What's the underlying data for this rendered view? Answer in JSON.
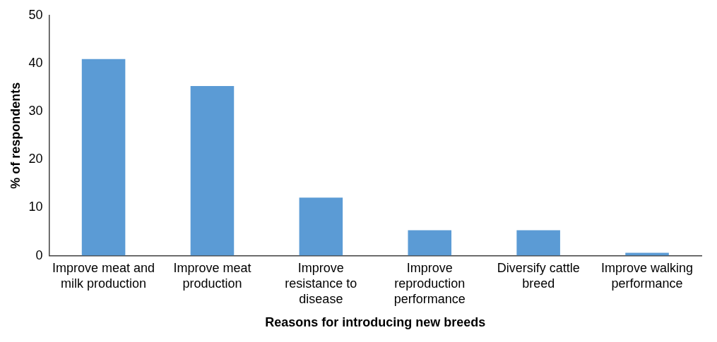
{
  "chart_data": {
    "type": "bar",
    "xlabel": "Reasons for introducing new breeds",
    "ylabel": "% of respondents",
    "categories": [
      "Improve meat and milk production",
      "Improve meat production",
      "Improve resistance to disease",
      "Improve reproduction performance",
      "Diversify cattle breed",
      "Improve walking performance"
    ],
    "values": [
      40.9,
      35.3,
      12.1,
      5.3,
      5.3,
      0.6
    ],
    "color": "#5b9bd5",
    "ylim": [
      0,
      50
    ],
    "yticks": [
      0,
      10,
      20,
      30,
      40,
      50
    ],
    "grid": false,
    "legend": false
  }
}
